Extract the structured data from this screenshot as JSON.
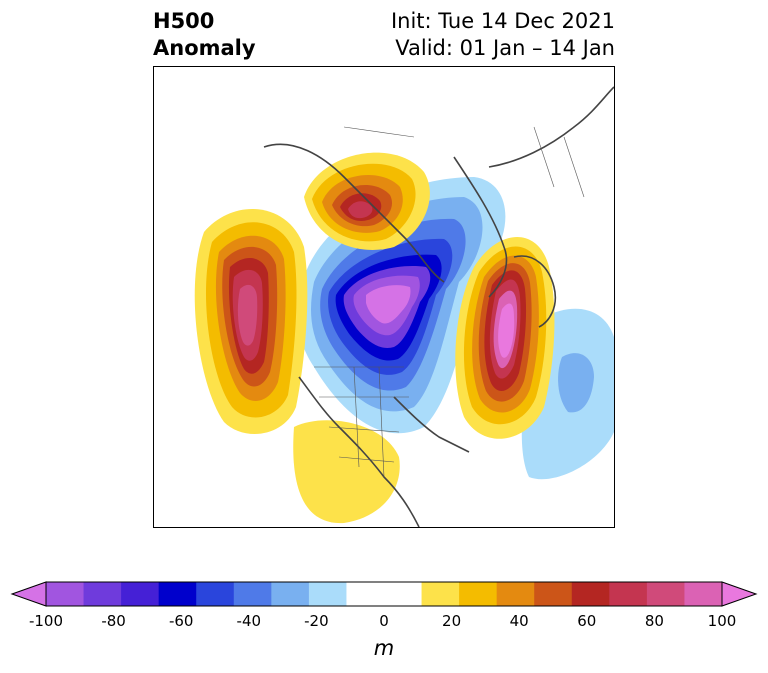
{
  "title": {
    "left_lines": [
      "H500",
      "Anomaly"
    ],
    "right_lines": [
      "Init: Tue 14 Dec 2021",
      "Valid: 01 Jan – 14 Jan"
    ]
  },
  "colorbar": {
    "ticks": [
      "-100",
      "-80",
      "-60",
      "-40",
      "-20",
      "0",
      "20",
      "40",
      "60",
      "80",
      "100"
    ],
    "unit": "m",
    "colors": [
      "#d572e6",
      "#a155e0",
      "#6f3bdc",
      "#4520d6",
      "#0000cc",
      "#2a45dc",
      "#4f7ae8",
      "#79b0f0",
      "#aadcfa",
      "#ffffff",
      "#ffffff",
      "#fde24a",
      "#f4bc00",
      "#e48a10",
      "#cc5518",
      "#b42622",
      "#c43550",
      "#d04a7a",
      "#db62b4",
      "#e978de"
    ]
  }
}
